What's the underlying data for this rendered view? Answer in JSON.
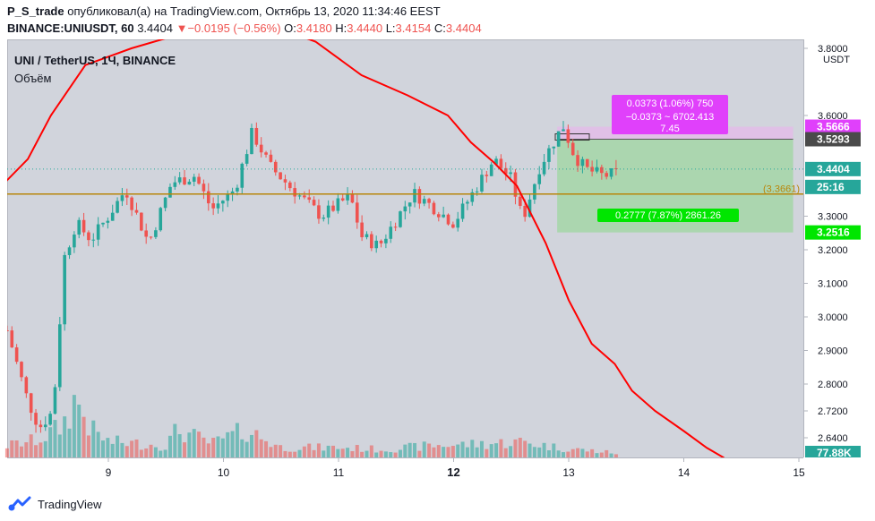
{
  "header": {
    "user": "P_S_trade",
    "published_text": "опубликовал(а) на TradingView.com, Октябрь 13, 2020 11:34:46 EEST",
    "symbol": "BINANCE:UNIUSDT, 60",
    "last": "3.4404",
    "change": "−0.0195 (−0.56%)",
    "o_label": "O:",
    "o_value": "3.4180",
    "h_label": "H:",
    "h_value": "3.4440",
    "l_label": "L:",
    "l_value": "3.4154",
    "c_label": "C:",
    "c_value": "3.4404"
  },
  "legend": {
    "title": "UNI / TetherUS, 1Ч, BINANCE",
    "volume_label": "Объём"
  },
  "axis": {
    "currency": "USDT",
    "price_ticks": [
      "3.8000",
      "3.6000",
      "3.3000",
      "3.2000",
      "3.1000",
      "3.0000",
      "2.9000",
      "2.8000",
      "2.7200",
      "2.6400"
    ],
    "price_tick_values": [
      3.8,
      3.6,
      3.3,
      3.2,
      3.1,
      3.0,
      2.9,
      2.8,
      2.72,
      2.64
    ],
    "time_ticks": [
      "9",
      "10",
      "11",
      "12",
      "13",
      "14",
      "15"
    ],
    "time_tick_values": [
      9,
      10,
      11,
      12,
      13,
      14,
      15
    ],
    "bold_time_tick": "12"
  },
  "price_labels": {
    "target": "3.5666",
    "entry": "3.5293",
    "last": "3.4404",
    "countdown": "25:16",
    "hline": "(3.3661)",
    "stop": "3.2516",
    "volume": "77.88K"
  },
  "position_tool": {
    "target_text": "0.0373 (1.06%) 750",
    "pnl_text": "−0.0373 ~ 6702.413",
    "ratio_text": "7.45",
    "stop_text": "0.2777 (7.87%) 2861.26"
  },
  "colors": {
    "up": "#26a69a",
    "down": "#ef5350",
    "ma": "#ff0000",
    "hline": "#b8860b",
    "bg": "#d1d4dc",
    "profit": "#a5d6a7",
    "loss": "#e1bee7",
    "magenta": "#e040fb",
    "green_label": "#00e600",
    "dark_label": "#4a4a4a"
  },
  "footer": {
    "brand": "TradingView",
    "logo": "tradingview-logo-icon"
  },
  "chart_data": {
    "type": "candlestick",
    "x_unit": "day of October 2020",
    "ylim": [
      2.58,
      3.87
    ],
    "xlim": [
      8.1,
      15.1
    ],
    "seed": 7,
    "waypoints": [
      {
        "x": 8.12,
        "y": 2.96
      },
      {
        "x": 8.3,
        "y": 2.75
      },
      {
        "x": 8.4,
        "y": 2.67
      },
      {
        "x": 8.52,
        "y": 2.72
      },
      {
        "x": 8.62,
        "y": 3.18
      },
      {
        "x": 8.72,
        "y": 3.28
      },
      {
        "x": 8.85,
        "y": 3.23
      },
      {
        "x": 9.0,
        "y": 3.3
      },
      {
        "x": 9.15,
        "y": 3.38
      },
      {
        "x": 9.35,
        "y": 3.22
      },
      {
        "x": 9.55,
        "y": 3.4
      },
      {
        "x": 9.75,
        "y": 3.42
      },
      {
        "x": 9.9,
        "y": 3.32
      },
      {
        "x": 10.1,
        "y": 3.38
      },
      {
        "x": 10.25,
        "y": 3.55
      },
      {
        "x": 10.4,
        "y": 3.45
      },
      {
        "x": 10.6,
        "y": 3.38
      },
      {
        "x": 10.85,
        "y": 3.3
      },
      {
        "x": 11.1,
        "y": 3.36
      },
      {
        "x": 11.2,
        "y": 3.24
      },
      {
        "x": 11.35,
        "y": 3.21
      },
      {
        "x": 11.5,
        "y": 3.29
      },
      {
        "x": 11.65,
        "y": 3.37
      },
      {
        "x": 11.85,
        "y": 3.32
      },
      {
        "x": 12.0,
        "y": 3.28
      },
      {
        "x": 12.15,
        "y": 3.36
      },
      {
        "x": 12.35,
        "y": 3.47
      },
      {
        "x": 12.5,
        "y": 3.41
      },
      {
        "x": 12.6,
        "y": 3.29
      },
      {
        "x": 12.75,
        "y": 3.45
      },
      {
        "x": 12.95,
        "y": 3.57
      },
      {
        "x": 13.05,
        "y": 3.48
      },
      {
        "x": 13.15,
        "y": 3.44
      },
      {
        "x": 13.3,
        "y": 3.42
      },
      {
        "x": 13.45,
        "y": 3.43
      }
    ],
    "volume_waypoints": [
      {
        "x": 8.12,
        "y": 6
      },
      {
        "x": 8.4,
        "y": 9
      },
      {
        "x": 8.6,
        "y": 16
      },
      {
        "x": 8.72,
        "y": 30
      },
      {
        "x": 8.85,
        "y": 14
      },
      {
        "x": 9.0,
        "y": 8
      },
      {
        "x": 9.5,
        "y": 6
      },
      {
        "x": 9.6,
        "y": 14
      },
      {
        "x": 9.9,
        "y": 7
      },
      {
        "x": 10.2,
        "y": 14
      },
      {
        "x": 10.5,
        "y": 5
      },
      {
        "x": 11.0,
        "y": 5
      },
      {
        "x": 11.4,
        "y": 4
      },
      {
        "x": 11.8,
        "y": 6
      },
      {
        "x": 12.3,
        "y": 7
      },
      {
        "x": 12.6,
        "y": 8
      },
      {
        "x": 12.9,
        "y": 5
      },
      {
        "x": 13.45,
        "y": 2
      }
    ],
    "ma_line": [
      {
        "x": 8.1,
        "y": 3.4
      },
      {
        "x": 8.3,
        "y": 3.47
      },
      {
        "x": 8.5,
        "y": 3.6
      },
      {
        "x": 8.8,
        "y": 3.75
      },
      {
        "x": 9.2,
        "y": 3.8
      },
      {
        "x": 9.6,
        "y": 3.84
      },
      {
        "x": 10.0,
        "y": 3.87
      },
      {
        "x": 10.4,
        "y": 3.87
      },
      {
        "x": 10.8,
        "y": 3.82
      },
      {
        "x": 11.2,
        "y": 3.72
      },
      {
        "x": 11.6,
        "y": 3.66
      },
      {
        "x": 11.95,
        "y": 3.6
      },
      {
        "x": 12.15,
        "y": 3.52
      },
      {
        "x": 12.35,
        "y": 3.46
      },
      {
        "x": 12.55,
        "y": 3.39
      },
      {
        "x": 12.8,
        "y": 3.22
      },
      {
        "x": 13.0,
        "y": 3.05
      },
      {
        "x": 13.2,
        "y": 2.92
      },
      {
        "x": 13.4,
        "y": 2.86
      },
      {
        "x": 13.55,
        "y": 2.78
      },
      {
        "x": 13.75,
        "y": 2.72
      },
      {
        "x": 14.0,
        "y": 2.66
      },
      {
        "x": 14.2,
        "y": 2.61
      },
      {
        "x": 14.35,
        "y": 2.58
      }
    ],
    "horizontal_line": 3.3661,
    "long_position": {
      "x_start": 12.9,
      "x_end": 14.95,
      "entry": 3.5293,
      "target": 3.5666,
      "stop": 3.2516
    },
    "last_price": 3.4404
  }
}
